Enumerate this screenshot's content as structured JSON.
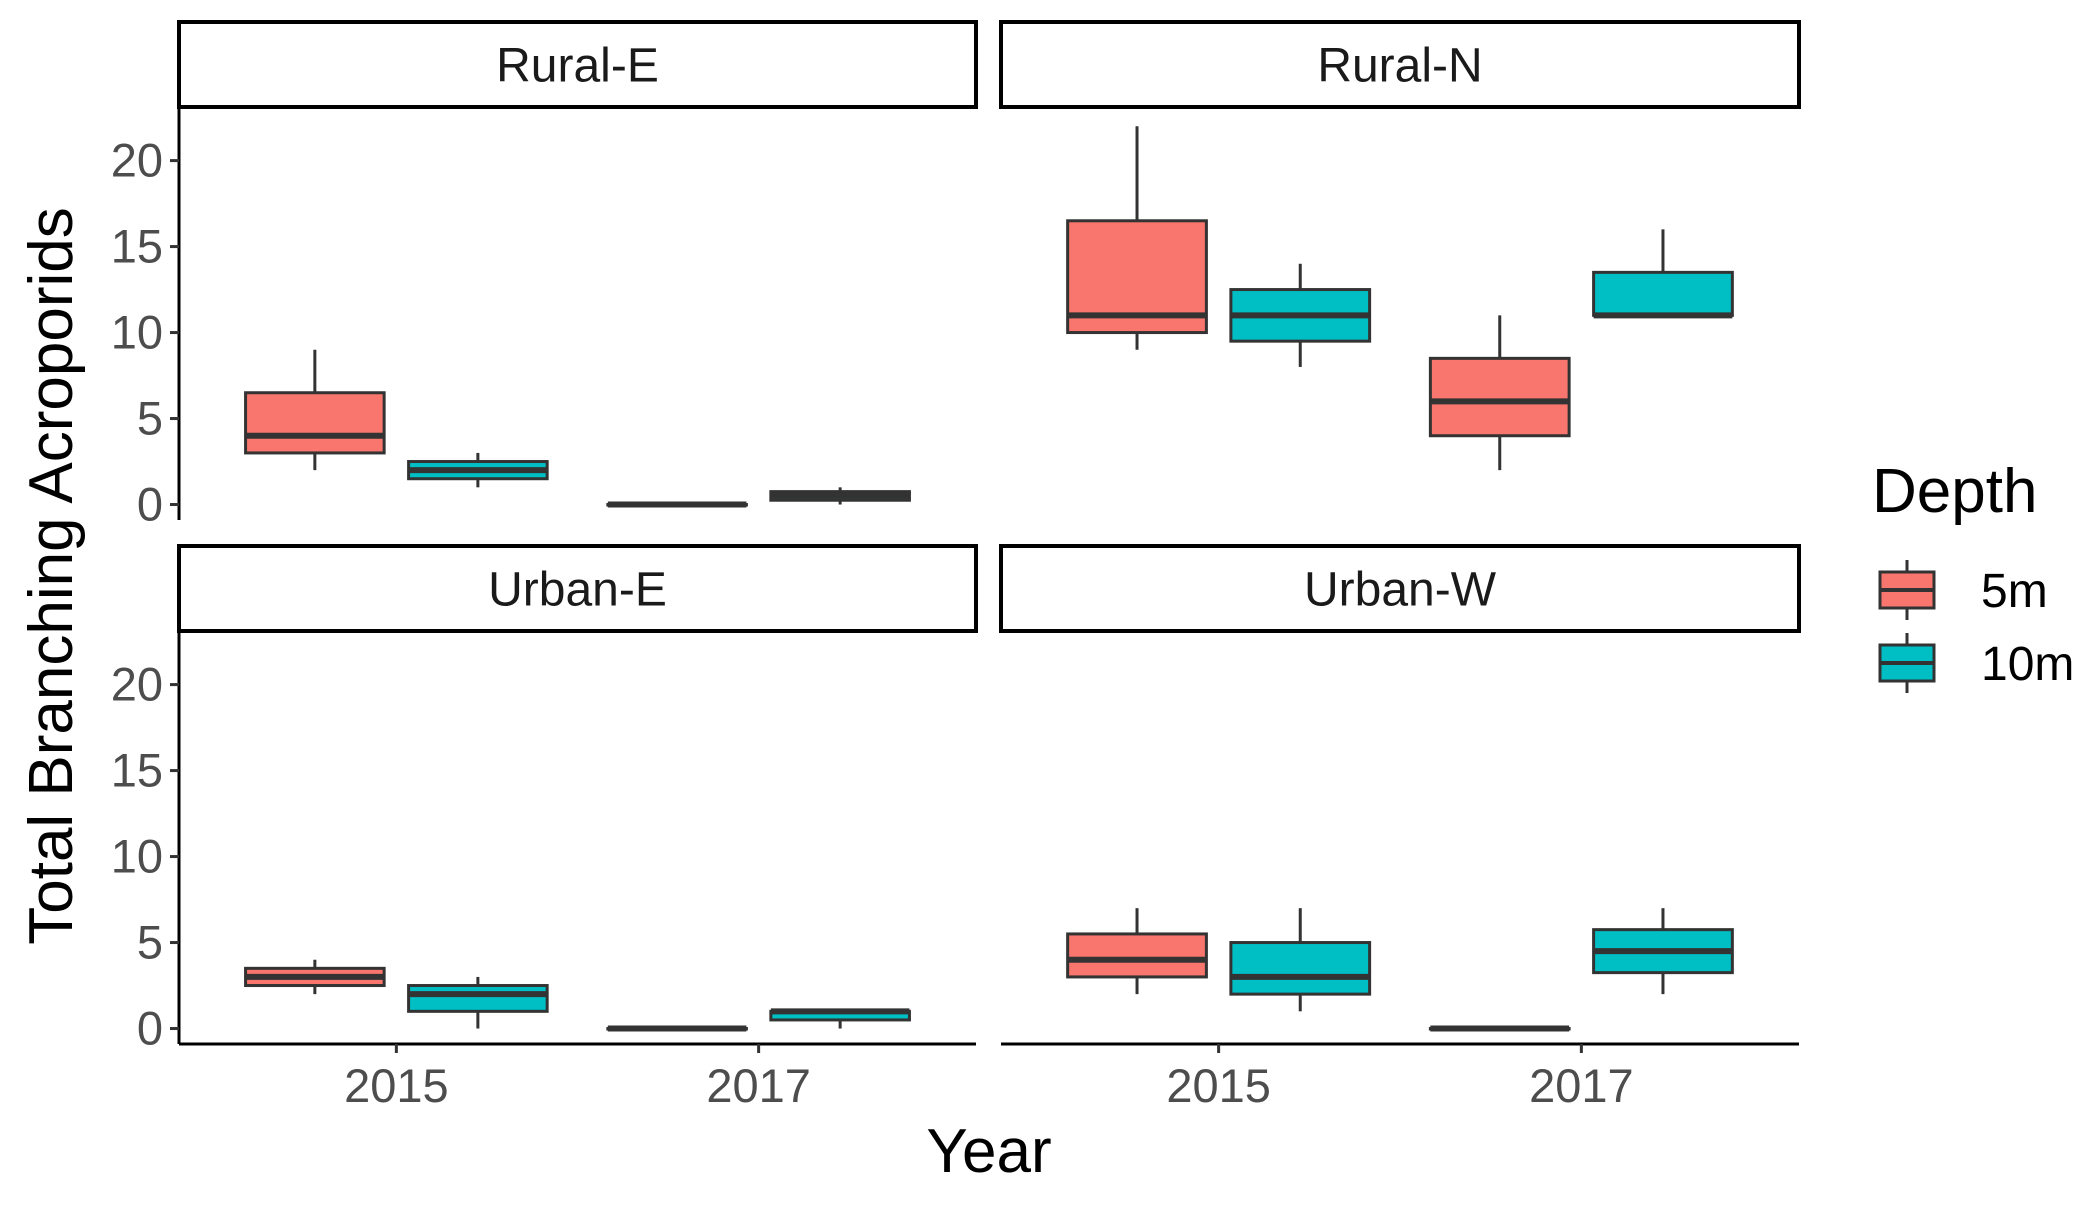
{
  "chart_data": {
    "type": "boxplot",
    "xlabel": "Year",
    "ylabel": "Total Branching Acroporids",
    "x_categories": [
      "2015",
      "2017"
    ],
    "ylim": [
      -0.9,
      23
    ],
    "y_ticks": [
      0,
      5,
      10,
      15,
      20
    ],
    "grid": false,
    "legend": {
      "title": "Depth",
      "placement": "right",
      "entries": [
        {
          "label": "5m",
          "color": "#F8766D"
        },
        {
          "label": "10m",
          "color": "#00BFC4"
        }
      ]
    },
    "panels": [
      {
        "title": "Rural-E",
        "boxes": [
          {
            "year": "2015",
            "depth": "5m",
            "min": 2,
            "q1": 3,
            "median": 4,
            "q3": 6.5,
            "max": 9
          },
          {
            "year": "2015",
            "depth": "10m",
            "min": 1,
            "q1": 1.5,
            "median": 2,
            "q3": 2.5,
            "max": 3
          },
          {
            "year": "2017",
            "depth": "5m",
            "min": 0,
            "q1": 0,
            "median": 0,
            "q3": 0,
            "max": 0
          },
          {
            "year": "2017",
            "depth": "10m",
            "min": 0,
            "q1": 0.25,
            "median": 0.5,
            "q3": 0.75,
            "max": 1
          }
        ]
      },
      {
        "title": "Rural-N",
        "boxes": [
          {
            "year": "2015",
            "depth": "5m",
            "min": 9,
            "q1": 10,
            "median": 11,
            "q3": 16.5,
            "max": 22
          },
          {
            "year": "2015",
            "depth": "10m",
            "min": 8,
            "q1": 9.5,
            "median": 11,
            "q3": 12.5,
            "max": 14
          },
          {
            "year": "2017",
            "depth": "5m",
            "min": 2,
            "q1": 4,
            "median": 6,
            "q3": 8.5,
            "max": 11
          },
          {
            "year": "2017",
            "depth": "10m",
            "min": 11,
            "q1": 11,
            "median": 11,
            "q3": 13.5,
            "max": 16
          }
        ]
      },
      {
        "title": "Urban-E",
        "boxes": [
          {
            "year": "2015",
            "depth": "5m",
            "min": 2,
            "q1": 2.5,
            "median": 3,
            "q3": 3.5,
            "max": 4
          },
          {
            "year": "2015",
            "depth": "10m",
            "min": 0,
            "q1": 1,
            "median": 2,
            "q3": 2.5,
            "max": 3
          },
          {
            "year": "2017",
            "depth": "5m",
            "min": 0,
            "q1": 0,
            "median": 0,
            "q3": 0,
            "max": 0
          },
          {
            "year": "2017",
            "depth": "10m",
            "min": 0,
            "q1": 0.5,
            "median": 1,
            "q3": 1,
            "max": 1
          }
        ]
      },
      {
        "title": "Urban-W",
        "boxes": [
          {
            "year": "2015",
            "depth": "5m",
            "min": 2,
            "q1": 3,
            "median": 4,
            "q3": 5.5,
            "max": 7
          },
          {
            "year": "2015",
            "depth": "10m",
            "min": 1,
            "q1": 2,
            "median": 3,
            "q3": 5,
            "max": 7
          },
          {
            "year": "2017",
            "depth": "5m",
            "min": 0,
            "q1": 0,
            "median": 0,
            "q3": 0,
            "max": 0
          },
          {
            "year": "2017",
            "depth": "10m",
            "min": 2,
            "q1": 3.25,
            "median": 4.5,
            "q3": 5.75,
            "max": 7
          }
        ]
      }
    ]
  }
}
